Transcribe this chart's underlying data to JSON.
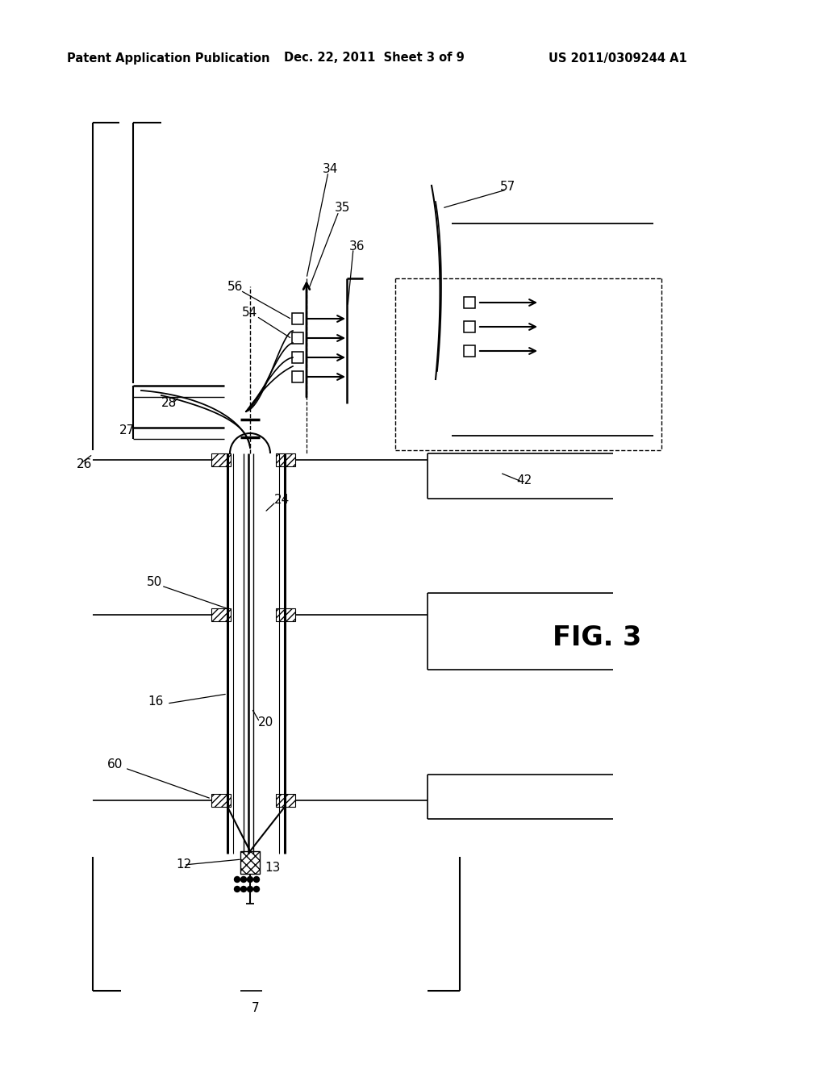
{
  "bg_color": "#ffffff",
  "line_color": "#000000",
  "header_left": "Patent Application Publication",
  "header_mid": "Dec. 22, 2011  Sheet 3 of 9",
  "header_right": "US 2011/0309244 A1",
  "fig_label": "FIG. 3"
}
